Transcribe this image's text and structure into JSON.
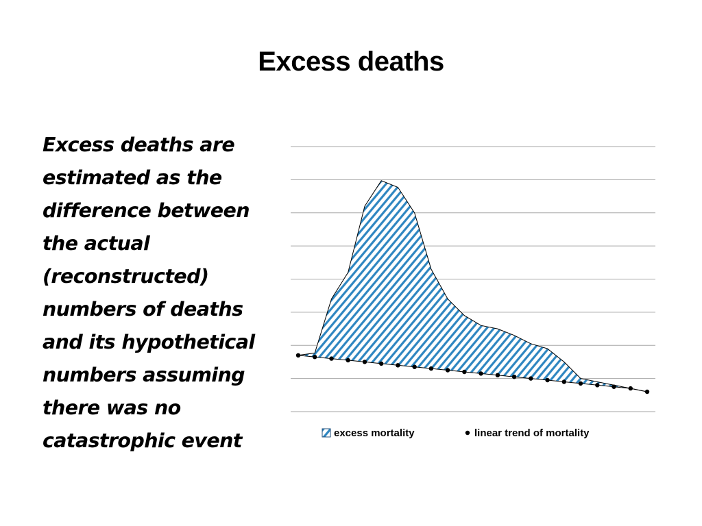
{
  "slide": {
    "title": "Excess deaths",
    "body_lines": [
      "Excess deaths are",
      "estimated as the",
      "difference between",
      "the actual",
      "(reconstructed)",
      "numbers of deaths",
      "and its hypothetical",
      "numbers assuming",
      "there was no",
      "catastrophic event"
    ]
  },
  "chart_data": {
    "type": "area",
    "x": [
      1,
      2,
      3,
      4,
      5,
      6,
      7,
      8,
      9,
      10,
      11,
      12,
      13,
      14,
      15,
      16,
      17,
      18,
      19,
      20,
      21,
      22
    ],
    "series": [
      {
        "name": "excess mortality",
        "values": [
          1.7,
          1.77,
          3.4,
          4.2,
          6.2,
          6.97,
          6.77,
          6.0,
          4.3,
          3.4,
          2.9,
          2.6,
          2.5,
          2.3,
          2.05,
          1.9,
          1.5,
          1.0,
          0.9,
          0.8,
          0.7,
          0.6
        ],
        "pattern": "diagonal-hatch",
        "color": "#2e86c1"
      },
      {
        "name": "linear trend of mortality",
        "values": [
          1.7,
          1.65,
          1.6,
          1.55,
          1.5,
          1.45,
          1.4,
          1.35,
          1.3,
          1.25,
          1.2,
          1.15,
          1.1,
          1.05,
          1.0,
          0.95,
          0.9,
          0.85,
          0.8,
          0.75,
          0.7,
          0.6
        ],
        "marker": "dot",
        "color": "#000000"
      }
    ],
    "ylim": [
      0,
      8
    ],
    "grid": true,
    "legend_position": "bottom"
  }
}
